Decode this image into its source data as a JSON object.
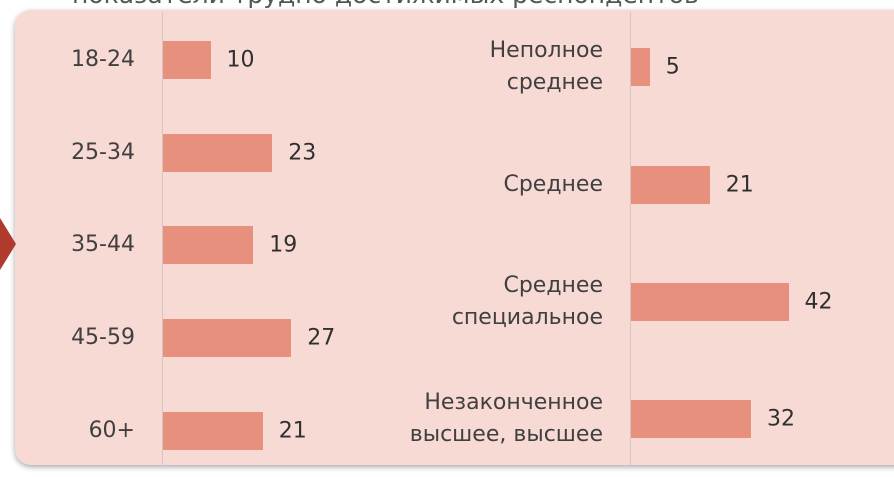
{
  "title": "показатели трудно достижимых респондентов",
  "chart_data": [
    {
      "type": "bar",
      "orientation": "horizontal",
      "categories": [
        "18-24",
        "25-34",
        "35-44",
        "45-59",
        "60+"
      ],
      "values": [
        10,
        23,
        19,
        27,
        21
      ],
      "color": "#e8907e",
      "xlim": [
        0,
        40
      ]
    },
    {
      "type": "bar",
      "orientation": "horizontal",
      "categories": [
        "Неполное\nсреднее",
        "Среднее",
        "Среднее\nспециальное",
        "Незаконченное\nвысшее, высшее"
      ],
      "values": [
        5,
        21,
        42,
        32
      ],
      "color": "#e8907e",
      "xlim": [
        0,
        60
      ]
    }
  ]
}
